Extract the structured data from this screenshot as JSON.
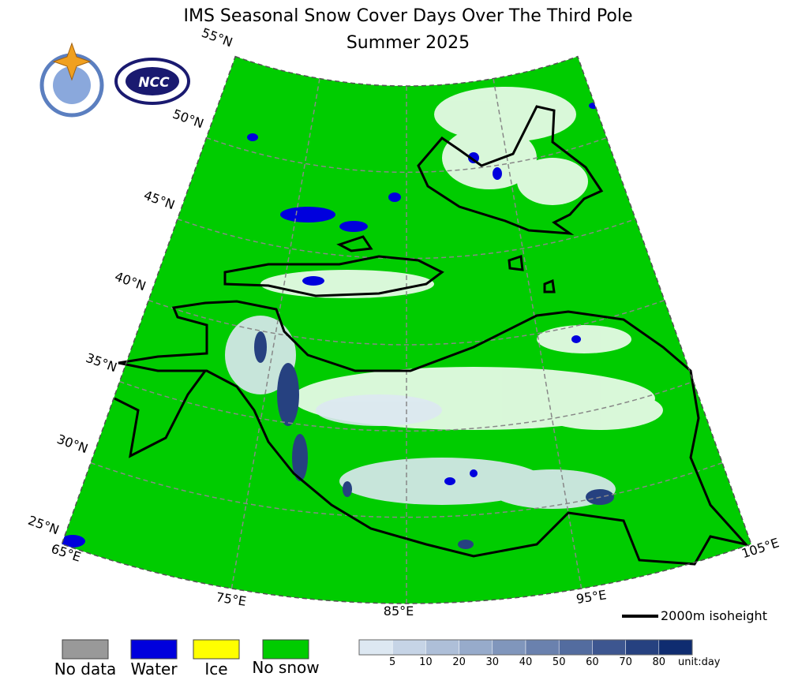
{
  "header": {
    "title": "IMS Seasonal Snow Cover Days Over The Third Pole",
    "subtitle": "Summer 2025"
  },
  "map": {
    "latitude_labels": [
      "55°N",
      "50°N",
      "45°N",
      "40°N",
      "35°N",
      "30°N",
      "25°N"
    ],
    "longitude_labels": [
      "65°E",
      "75°E",
      "85°E",
      "95°E",
      "105°E"
    ],
    "contour_label": "2000m isoheight"
  },
  "legend": {
    "items": [
      {
        "label": "No data",
        "color": "#999999"
      },
      {
        "label": "Water",
        "color": "#0000dd"
      },
      {
        "label": "Ice",
        "color": "#ffff00"
      },
      {
        "label": "No snow",
        "color": "#00cc00"
      }
    ]
  },
  "colorbar": {
    "colors": [
      "#dde8f2",
      "#c6d4e6",
      "#aebfd8",
      "#97abcb",
      "#8096bc",
      "#6a81ae",
      "#536c9f",
      "#3d5690",
      "#264180",
      "#0f2c70"
    ],
    "ticks": [
      5,
      10,
      20,
      30,
      40,
      50,
      60,
      70,
      80
    ],
    "unit": "unit:day"
  }
}
